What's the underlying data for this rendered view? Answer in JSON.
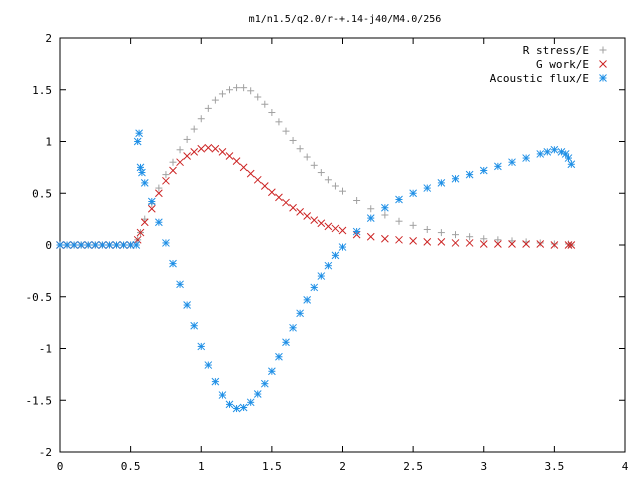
{
  "chart_data": {
    "type": "scatter",
    "title": "m1/n1.5/q2.0/r-+.14-j40/M4.0/256",
    "xlabel": "",
    "ylabel": "",
    "xlim": [
      0,
      4
    ],
    "ylim": [
      -2,
      2
    ],
    "xticks": [
      "0",
      "0.5",
      "1",
      "1.5",
      "2",
      "2.5",
      "3",
      "3.5",
      "4"
    ],
    "yticks": [
      "-2",
      "-1.5",
      "-1",
      "-0.5",
      "0",
      "0.5",
      "1",
      "1.5",
      "2"
    ],
    "grid": false,
    "legend_position": "top-right",
    "series": [
      {
        "name": "R stress/E",
        "marker": "plus",
        "color": "#a0a0a0",
        "x": [
          0.0,
          0.05,
          0.1,
          0.15,
          0.2,
          0.25,
          0.3,
          0.35,
          0.4,
          0.45,
          0.5,
          0.55,
          0.57,
          0.6,
          0.65,
          0.7,
          0.75,
          0.8,
          0.85,
          0.9,
          0.95,
          1.0,
          1.05,
          1.1,
          1.15,
          1.2,
          1.25,
          1.3,
          1.35,
          1.4,
          1.45,
          1.5,
          1.55,
          1.6,
          1.65,
          1.7,
          1.75,
          1.8,
          1.85,
          1.9,
          1.95,
          2.0,
          2.1,
          2.2,
          2.3,
          2.4,
          2.5,
          2.6,
          2.7,
          2.8,
          2.9,
          3.0,
          3.1,
          3.2,
          3.3,
          3.4,
          3.5,
          3.6,
          3.62
        ],
        "y": [
          0,
          0,
          0,
          0,
          0,
          0,
          0,
          0,
          0,
          0,
          0,
          0.05,
          0.12,
          0.25,
          0.4,
          0.55,
          0.68,
          0.8,
          0.92,
          1.02,
          1.12,
          1.22,
          1.32,
          1.4,
          1.46,
          1.5,
          1.52,
          1.52,
          1.49,
          1.43,
          1.36,
          1.28,
          1.19,
          1.1,
          1.01,
          0.93,
          0.85,
          0.77,
          0.7,
          0.63,
          0.57,
          0.52,
          0.43,
          0.35,
          0.29,
          0.23,
          0.19,
          0.15,
          0.12,
          0.1,
          0.08,
          0.06,
          0.05,
          0.04,
          0.03,
          0.02,
          0.01,
          0.01,
          0.0
        ]
      },
      {
        "name": "G work/E",
        "marker": "cross",
        "color": "#cc2222",
        "x": [
          0.0,
          0.05,
          0.1,
          0.15,
          0.2,
          0.25,
          0.3,
          0.35,
          0.4,
          0.45,
          0.5,
          0.55,
          0.57,
          0.6,
          0.65,
          0.7,
          0.75,
          0.8,
          0.85,
          0.9,
          0.95,
          1.0,
          1.05,
          1.1,
          1.15,
          1.2,
          1.25,
          1.3,
          1.35,
          1.4,
          1.45,
          1.5,
          1.55,
          1.6,
          1.65,
          1.7,
          1.75,
          1.8,
          1.85,
          1.9,
          1.95,
          2.0,
          2.1,
          2.2,
          2.3,
          2.4,
          2.5,
          2.6,
          2.7,
          2.8,
          2.9,
          3.0,
          3.1,
          3.2,
          3.3,
          3.4,
          3.5,
          3.6,
          3.62
        ],
        "y": [
          0,
          0,
          0,
          0,
          0,
          0,
          0,
          0,
          0,
          0,
          0,
          0.05,
          0.12,
          0.22,
          0.35,
          0.5,
          0.62,
          0.72,
          0.8,
          0.86,
          0.9,
          0.93,
          0.94,
          0.93,
          0.9,
          0.86,
          0.81,
          0.75,
          0.69,
          0.63,
          0.57,
          0.51,
          0.46,
          0.41,
          0.36,
          0.32,
          0.28,
          0.24,
          0.21,
          0.18,
          0.16,
          0.14,
          0.1,
          0.08,
          0.06,
          0.05,
          0.04,
          0.03,
          0.03,
          0.02,
          0.02,
          0.01,
          0.01,
          0.01,
          0.01,
          0.01,
          0.0,
          0.0,
          0.0
        ]
      },
      {
        "name": "Acoustic flux/E",
        "marker": "star",
        "color": "#1e8fe6",
        "x": [
          0.0,
          0.05,
          0.1,
          0.15,
          0.2,
          0.25,
          0.3,
          0.35,
          0.4,
          0.45,
          0.5,
          0.54,
          0.55,
          0.56,
          0.57,
          0.58,
          0.6,
          0.65,
          0.7,
          0.75,
          0.8,
          0.85,
          0.9,
          0.95,
          1.0,
          1.05,
          1.1,
          1.15,
          1.2,
          1.25,
          1.3,
          1.35,
          1.4,
          1.45,
          1.5,
          1.55,
          1.6,
          1.65,
          1.7,
          1.75,
          1.8,
          1.85,
          1.9,
          1.95,
          2.0,
          2.1,
          2.2,
          2.3,
          2.4,
          2.5,
          2.6,
          2.7,
          2.8,
          2.9,
          3.0,
          3.1,
          3.2,
          3.3,
          3.4,
          3.45,
          3.5,
          3.55,
          3.58,
          3.6,
          3.62
        ],
        "y": [
          0,
          0,
          0,
          0,
          0,
          0,
          0,
          0,
          0,
          0,
          0,
          0,
          1.0,
          1.08,
          0.75,
          0.7,
          0.6,
          0.42,
          0.22,
          0.02,
          -0.18,
          -0.38,
          -0.58,
          -0.78,
          -0.98,
          -1.16,
          -1.32,
          -1.45,
          -1.54,
          -1.58,
          -1.57,
          -1.52,
          -1.44,
          -1.34,
          -1.22,
          -1.08,
          -0.94,
          -0.8,
          -0.66,
          -0.53,
          -0.41,
          -0.3,
          -0.2,
          -0.1,
          -0.02,
          0.13,
          0.26,
          0.36,
          0.44,
          0.5,
          0.55,
          0.6,
          0.64,
          0.68,
          0.72,
          0.76,
          0.8,
          0.84,
          0.88,
          0.9,
          0.92,
          0.9,
          0.88,
          0.84,
          0.78
        ]
      }
    ]
  }
}
